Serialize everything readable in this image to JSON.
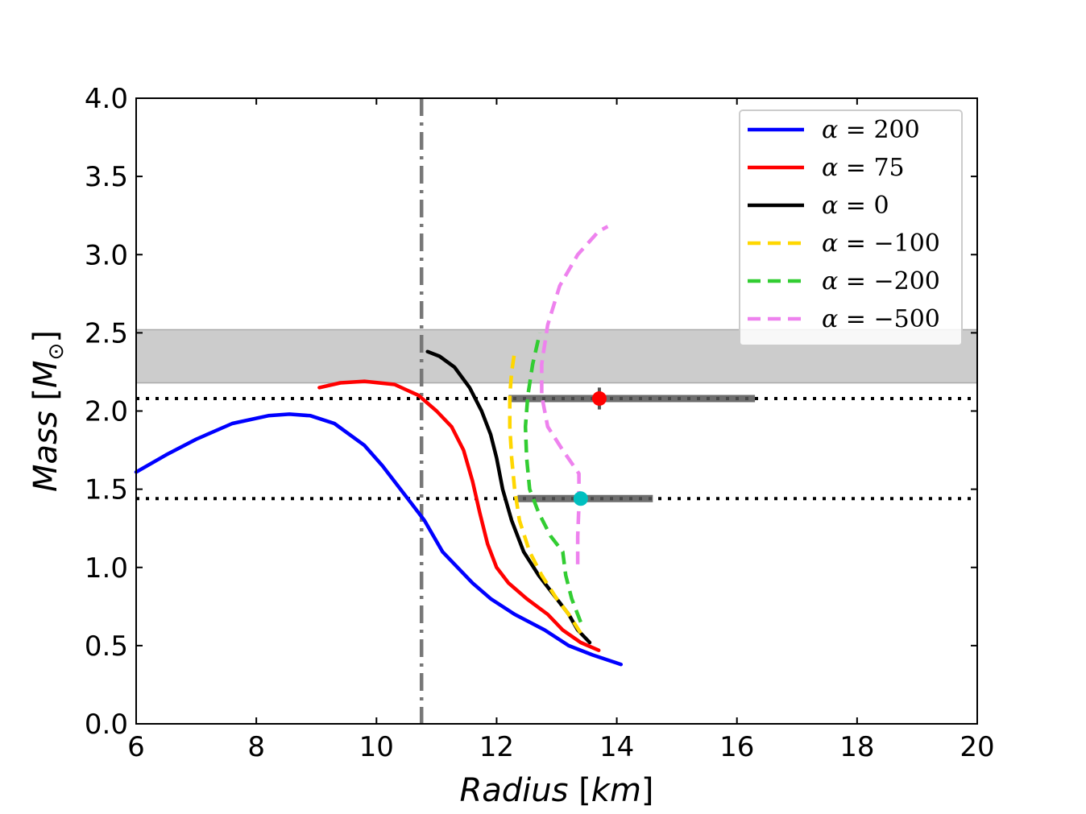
{
  "chart_data": {
    "type": "line",
    "title": "",
    "xlabel": "Radius [km]",
    "xlabel_parts": {
      "var": "Radius",
      "unit": "km"
    },
    "ylabel": "Mass [M⊙]",
    "ylabel_parts": {
      "var": "Mass",
      "sym": "M",
      "sub": "⊙"
    },
    "xlim": [
      6,
      20
    ],
    "ylim": [
      0,
      4
    ],
    "xticks": [
      6,
      8,
      10,
      12,
      14,
      16,
      18,
      20
    ],
    "yticks": [
      0,
      0.5,
      1,
      1.5,
      2,
      2.5,
      3,
      3.5,
      4
    ],
    "xtick_labels": [
      "6",
      "8",
      "10",
      "12",
      "14",
      "16",
      "18",
      "20"
    ],
    "ytick_labels": [
      "0.0",
      "0.5",
      "1.0",
      "1.5",
      "2.0",
      "2.5",
      "3.0",
      "3.5",
      "4.0"
    ],
    "grid": false,
    "legend_position": "top-right",
    "series": [
      {
        "name": "α = 200",
        "label_value": "200",
        "color": "#0000ff",
        "dashed": false,
        "points": [
          [
            14.07,
            0.38
          ],
          [
            13.6,
            0.44
          ],
          [
            13.2,
            0.5
          ],
          [
            12.8,
            0.6
          ],
          [
            12.3,
            0.7
          ],
          [
            11.9,
            0.8
          ],
          [
            11.6,
            0.9
          ],
          [
            11.35,
            1.0
          ],
          [
            11.1,
            1.1
          ],
          [
            10.95,
            1.2
          ],
          [
            10.8,
            1.3
          ],
          [
            10.6,
            1.4
          ],
          [
            10.4,
            1.5
          ],
          [
            10.1,
            1.65
          ],
          [
            9.8,
            1.78
          ],
          [
            9.3,
            1.92
          ],
          [
            8.9,
            1.97
          ],
          [
            8.55,
            1.98
          ],
          [
            8.2,
            1.97
          ],
          [
            7.6,
            1.92
          ],
          [
            7.0,
            1.82
          ],
          [
            6.5,
            1.72
          ],
          [
            6.0,
            1.61
          ]
        ]
      },
      {
        "name": "α = 75",
        "label_value": "75",
        "color": "#ff0000",
        "dashed": false,
        "points": [
          [
            13.7,
            0.47
          ],
          [
            13.4,
            0.52
          ],
          [
            13.1,
            0.6
          ],
          [
            12.85,
            0.7
          ],
          [
            12.5,
            0.8
          ],
          [
            12.2,
            0.9
          ],
          [
            12.0,
            1.0
          ],
          [
            11.85,
            1.15
          ],
          [
            11.72,
            1.35
          ],
          [
            11.6,
            1.55
          ],
          [
            11.45,
            1.75
          ],
          [
            11.25,
            1.9
          ],
          [
            11.0,
            2.0
          ],
          [
            10.7,
            2.1
          ],
          [
            10.3,
            2.17
          ],
          [
            9.8,
            2.19
          ],
          [
            9.4,
            2.18
          ],
          [
            9.05,
            2.15
          ]
        ]
      },
      {
        "name": "α = 0",
        "label_value": "0",
        "color": "#000000",
        "dashed": false,
        "points": [
          [
            13.55,
            0.52
          ],
          [
            13.35,
            0.6
          ],
          [
            13.2,
            0.7
          ],
          [
            13.0,
            0.8
          ],
          [
            12.7,
            0.95
          ],
          [
            12.45,
            1.1
          ],
          [
            12.25,
            1.3
          ],
          [
            12.1,
            1.5
          ],
          [
            12.0,
            1.7
          ],
          [
            11.9,
            1.85
          ],
          [
            11.75,
            2.0
          ],
          [
            11.55,
            2.15
          ],
          [
            11.3,
            2.28
          ],
          [
            11.05,
            2.35
          ],
          [
            10.85,
            2.38
          ]
        ]
      },
      {
        "name": "α = −100",
        "label_value": "−100",
        "color": "#ffd700",
        "dashed": true,
        "points": [
          [
            13.4,
            0.58
          ],
          [
            13.2,
            0.7
          ],
          [
            13.0,
            0.8
          ],
          [
            12.75,
            0.95
          ],
          [
            12.55,
            1.1
          ],
          [
            12.38,
            1.3
          ],
          [
            12.3,
            1.5
          ],
          [
            12.25,
            1.7
          ],
          [
            12.22,
            1.9
          ],
          [
            12.22,
            2.1
          ],
          [
            12.25,
            2.25
          ],
          [
            12.3,
            2.38
          ]
        ]
      },
      {
        "name": "α = −200",
        "label_value": "−200",
        "color": "#32cd32",
        "dashed": true,
        "points": [
          [
            13.4,
            0.65
          ],
          [
            13.25,
            0.8
          ],
          [
            13.15,
            0.95
          ],
          [
            13.1,
            1.1
          ],
          [
            12.9,
            1.2
          ],
          [
            12.7,
            1.35
          ],
          [
            12.55,
            1.5
          ],
          [
            12.5,
            1.7
          ],
          [
            12.48,
            1.9
          ],
          [
            12.52,
            2.1
          ],
          [
            12.6,
            2.3
          ],
          [
            12.72,
            2.5
          ]
        ]
      },
      {
        "name": "α = −500",
        "label_value": "−500",
        "color": "#ee82ee",
        "dashed": true,
        "points": [
          [
            13.35,
            1.02
          ],
          [
            13.35,
            1.2
          ],
          [
            13.37,
            1.4
          ],
          [
            13.37,
            1.6
          ],
          [
            13.1,
            1.75
          ],
          [
            12.85,
            1.9
          ],
          [
            12.75,
            2.1
          ],
          [
            12.75,
            2.3
          ],
          [
            12.85,
            2.55
          ],
          [
            13.05,
            2.8
          ],
          [
            13.35,
            3.0
          ],
          [
            13.7,
            3.15
          ],
          [
            13.85,
            3.18
          ]
        ]
      }
    ],
    "reference_lines": {
      "vertical_dashdot_x": 10.75,
      "horizontal_dotted_y": [
        2.08,
        1.44
      ]
    },
    "shaded_band": {
      "ymin": 2.18,
      "ymax": 2.52,
      "color": "#cccccc"
    },
    "observations": [
      {
        "x": 13.71,
        "y": 2.08,
        "xerr_low": 12.2,
        "xerr_high": 16.3,
        "yerr": 0.07,
        "color": "#ff0000"
      },
      {
        "x": 13.4,
        "y": 1.44,
        "xerr_low": 12.35,
        "xerr_high": 14.6,
        "yerr": 0,
        "color": "#00bfbf"
      }
    ]
  }
}
